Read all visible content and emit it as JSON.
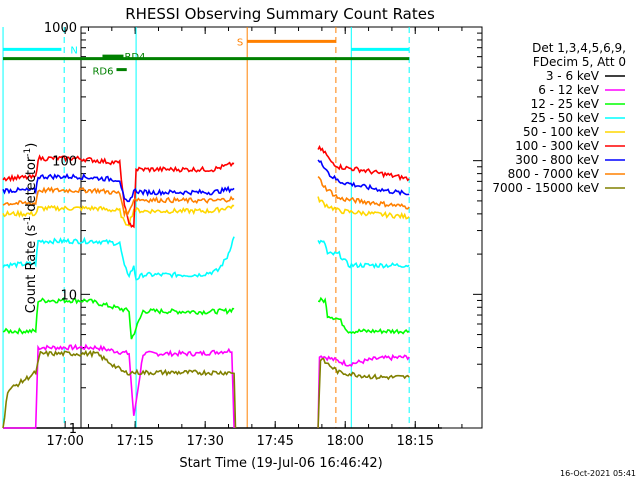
{
  "chart_data": {
    "type": "line",
    "title": "RHESSI Observing Summary Count Rates",
    "xlabel": "Start Time (19-Jul-06 16:46:42)",
    "ylabel_main": "Count Rate (s",
    "ylabel_sup1": "-1",
    "ylabel_mid": " detector",
    "ylabel_sup2": "-1",
    "ylabel_end": ")",
    "yscale": "log",
    "ylim": [
      1,
      1000
    ],
    "xlim_minutes": [
      16.7,
      102.6
    ],
    "x_unit": "minutes after 16:46:42",
    "x_ticks": [
      {
        "label": "17:00",
        "value": 13.3
      },
      {
        "label": "17:15",
        "value": 28.3
      },
      {
        "label": "17:30",
        "value": 43.3
      },
      {
        "label": "17:45",
        "value": 58.3
      },
      {
        "label": "18:00",
        "value": 73.3
      },
      {
        "label": "18:15",
        "value": 88.3
      }
    ],
    "y_ticks": [
      {
        "label": "1",
        "value": 1
      },
      {
        "label": "10",
        "value": 10
      },
      {
        "label": "100",
        "value": 100
      },
      {
        "label": "1000",
        "value": 1000
      }
    ],
    "legend_header": [
      "Det 1,3,4,5,6,9,",
      "FDecim 5, Att 0"
    ],
    "legend_position": "right",
    "series": [
      {
        "name": "3 - 6 keV",
        "color": "#000000",
        "segments": [
          [
            [
              0,
              1
            ],
            [
              94,
              1
            ]
          ]
        ]
      },
      {
        "name": "6 - 12 keV",
        "color": "#ff00ff",
        "segments": [
          [
            [
              0,
              1
            ],
            [
              7,
              1
            ],
            [
              7.5,
              4
            ],
            [
              20,
              4
            ],
            [
              27,
              3.6
            ],
            [
              28,
              1.2
            ],
            [
              30,
              3.6
            ],
            [
              42,
              3.6
            ],
            [
              49,
              3.8
            ],
            [
              49.5,
              1
            ]
          ],
          [
            [
              67.5,
              1
            ],
            [
              67.8,
              3.5
            ],
            [
              74,
              3
            ],
            [
              80,
              3.3
            ],
            [
              87,
              3.4
            ]
          ]
        ]
      },
      {
        "name": "12 - 25 keV",
        "color": "#00ff00",
        "segments": [
          [
            [
              0,
              5.3
            ],
            [
              7,
              5.3
            ],
            [
              7.5,
              9
            ],
            [
              18,
              9
            ],
            [
              27,
              7.5
            ],
            [
              27.5,
              4.6
            ],
            [
              30,
              7.5
            ],
            [
              43,
              7.4
            ],
            [
              48,
              7.5
            ],
            [
              49.5,
              7.8
            ]
          ],
          [
            [
              67.5,
              9
            ],
            [
              69,
              9
            ],
            [
              69.5,
              7
            ],
            [
              72,
              6.5
            ],
            [
              74,
              5.3
            ],
            [
              87,
              5.3
            ]
          ]
        ]
      },
      {
        "name": "25 - 50 keV",
        "color": "#00ffff",
        "segments": [
          [
            [
              0,
              16.5
            ],
            [
              7,
              17
            ],
            [
              7.5,
              25
            ],
            [
              20,
              25
            ],
            [
              25,
              24
            ],
            [
              26,
              16
            ],
            [
              27,
              14
            ],
            [
              28,
              16
            ],
            [
              28.5,
              13
            ],
            [
              30,
              14
            ],
            [
              42,
              14
            ],
            [
              46,
              15
            ],
            [
              48,
              19
            ],
            [
              49.5,
              27
            ]
          ],
          [
            [
              67.5,
              25
            ],
            [
              69,
              24
            ],
            [
              69.5,
              20
            ],
            [
              72,
              20
            ],
            [
              74,
              16.5
            ],
            [
              87,
              16.5
            ]
          ]
        ]
      },
      {
        "name": "50 - 100 keV",
        "color": "#ffd700",
        "segments": [
          [
            [
              0,
              40
            ],
            [
              7,
              40
            ],
            [
              7.5,
              44
            ],
            [
              20,
              44
            ],
            [
              25,
              42
            ],
            [
              26,
              34
            ],
            [
              27,
              34
            ],
            [
              28,
              43
            ],
            [
              30,
              42
            ],
            [
              45,
              42
            ],
            [
              49.5,
              46
            ]
          ],
          [
            [
              67.5,
              52
            ],
            [
              69,
              47
            ],
            [
              72,
              42
            ],
            [
              87,
              38
            ]
          ]
        ]
      },
      {
        "name": "100 - 300 keV",
        "color": "#ff0000",
        "segments": [
          [
            [
              0,
              74
            ],
            [
              7,
              75
            ],
            [
              7.5,
              104
            ],
            [
              16,
              104
            ],
            [
              25,
              96
            ],
            [
              26,
              45
            ],
            [
              27,
              35
            ],
            [
              27.5,
              31
            ],
            [
              28,
              33
            ],
            [
              28.5,
              86
            ],
            [
              45,
              86
            ],
            [
              49.5,
              95
            ]
          ],
          [
            [
              67.5,
              124
            ],
            [
              69,
              115
            ],
            [
              70,
              100
            ],
            [
              72,
              90
            ],
            [
              77,
              85
            ],
            [
              87,
              73
            ]
          ]
        ]
      },
      {
        "name": "300 - 800 keV",
        "color": "#0000ff",
        "segments": [
          [
            [
              0,
              60
            ],
            [
              7,
              60
            ],
            [
              7.5,
              76
            ],
            [
              16,
              76
            ],
            [
              25,
              72
            ],
            [
              26,
              50
            ],
            [
              27,
              48
            ],
            [
              28,
              60
            ],
            [
              30,
              58
            ],
            [
              45,
              58
            ],
            [
              49.5,
              62
            ]
          ],
          [
            [
              67.5,
              100
            ],
            [
              69,
              90
            ],
            [
              70,
              78
            ],
            [
              72,
              70
            ],
            [
              77,
              64
            ],
            [
              87,
              56
            ]
          ]
        ]
      },
      {
        "name": "800 - 7000 keV",
        "color": "#ff8000",
        "segments": [
          [
            [
              0,
              48
            ],
            [
              7,
              48
            ],
            [
              7.5,
              60
            ],
            [
              20,
              60
            ],
            [
              25,
              57
            ],
            [
              26,
              41
            ],
            [
              27,
              41
            ],
            [
              28,
              52
            ],
            [
              30,
              51
            ],
            [
              45,
              50
            ],
            [
              49.5,
              52
            ]
          ],
          [
            [
              67.5,
              75
            ],
            [
              69,
              63
            ],
            [
              72,
              52
            ],
            [
              87,
              45
            ]
          ]
        ]
      },
      {
        "name": "7000 - 15000 keV",
        "color": "#808000",
        "segments": [
          [
            [
              0,
              1
            ],
            [
              1,
              1.9
            ],
            [
              7,
              2.6
            ],
            [
              8,
              3.6
            ],
            [
              20,
              3.6
            ],
            [
              26,
              2.6
            ],
            [
              30,
              2.6
            ],
            [
              45,
              2.6
            ],
            [
              49.5,
              2.6
            ],
            [
              49.8,
              1
            ]
          ],
          [
            [
              67.5,
              1
            ],
            [
              68,
              3.3
            ],
            [
              72,
              2.6
            ],
            [
              80,
              2.4
            ],
            [
              87,
              2.4
            ]
          ]
        ]
      }
    ],
    "flags": [
      {
        "label": "N",
        "color": "#00ffff",
        "value": 680,
        "spans": [
          [
            0,
            12.5
          ],
          [
            74.6,
            87
          ]
        ]
      },
      {
        "label": "",
        "color": "#008000",
        "value": 580,
        "spans": [
          [
            0,
            87
          ]
        ]
      },
      {
        "label": "RD4",
        "color": "#008000",
        "value": 605,
        "spans": [
          [
            21.3,
            25.8
          ]
        ]
      },
      {
        "label": "RD6",
        "color": "#008000",
        "value": 480,
        "spans": [
          [
            24.3,
            26.5
          ]
        ]
      },
      {
        "label": "S",
        "color": "#ff8000",
        "value": 780,
        "spans": [
          [
            52.3,
            71.3
          ]
        ]
      }
    ],
    "vertical_lines": [
      {
        "x": 0,
        "color": "#00ffff",
        "style": "solid"
      },
      {
        "x": 13.1,
        "color": "#00ffff",
        "style": "dashed"
      },
      {
        "x": 28.5,
        "color": "#00ffff",
        "style": "solid"
      },
      {
        "x": 52.3,
        "color": "#ff8000",
        "style": "solid"
      },
      {
        "x": 71.3,
        "color": "#ff8000",
        "style": "dashed"
      },
      {
        "x": 74.6,
        "color": "#00ffff",
        "style": "solid"
      },
      {
        "x": 87,
        "color": "#00ffff",
        "style": "dashed"
      }
    ]
  },
  "footer_date": "16-Oct-2021 05:41"
}
